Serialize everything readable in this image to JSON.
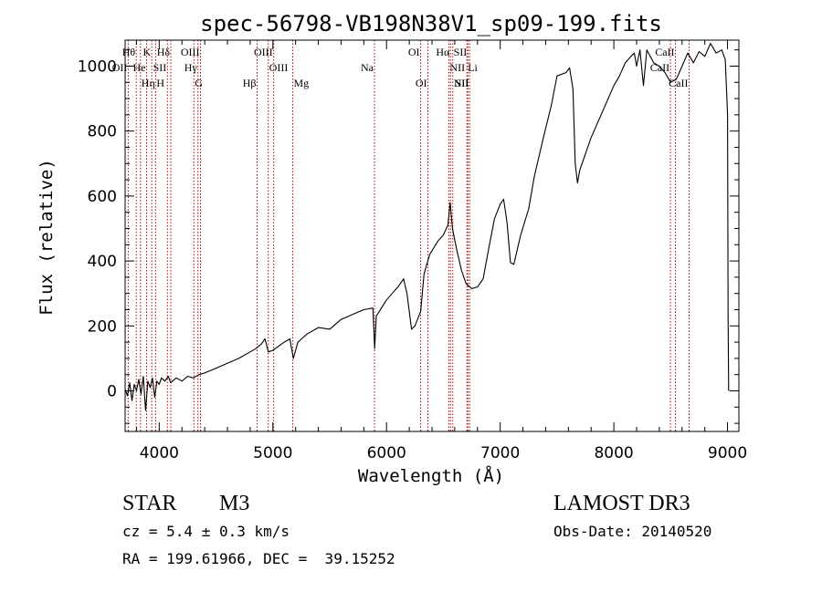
{
  "chart_data": {
    "type": "line",
    "title": "spec-56798-VB198N38V1_sp09-199.fits",
    "xlabel": "Wavelength (Å)",
    "ylabel": "Flux (relative)",
    "xlim": [
      3700,
      9100
    ],
    "ylim": [
      -125,
      1080
    ],
    "xticks": [
      4000,
      5000,
      6000,
      7000,
      8000,
      9000
    ],
    "yticks": [
      0,
      200,
      400,
      600,
      800,
      1000
    ],
    "series": [
      {
        "name": "spectrum",
        "color": "#000000",
        "points": [
          [
            3700,
            5
          ],
          [
            3720,
            -15
          ],
          [
            3740,
            25
          ],
          [
            3760,
            -30
          ],
          [
            3780,
            20
          ],
          [
            3800,
            0
          ],
          [
            3820,
            35
          ],
          [
            3840,
            -10
          ],
          [
            3860,
            45
          ],
          [
            3880,
            -60
          ],
          [
            3900,
            30
          ],
          [
            3920,
            10
          ],
          [
            3940,
            40
          ],
          [
            3960,
            -20
          ],
          [
            3980,
            30
          ],
          [
            4000,
            20
          ],
          [
            4020,
            40
          ],
          [
            4050,
            30
          ],
          [
            4080,
            45
          ],
          [
            4100,
            25
          ],
          [
            4150,
            40
          ],
          [
            4200,
            30
          ],
          [
            4250,
            45
          ],
          [
            4300,
            40
          ],
          [
            4350,
            50
          ],
          [
            4400,
            55
          ],
          [
            4500,
            70
          ],
          [
            4600,
            85
          ],
          [
            4700,
            100
          ],
          [
            4800,
            120
          ],
          [
            4850,
            130
          ],
          [
            4900,
            145
          ],
          [
            4930,
            160
          ],
          [
            4960,
            120
          ],
          [
            5000,
            125
          ],
          [
            5100,
            150
          ],
          [
            5150,
            160
          ],
          [
            5180,
            100
          ],
          [
            5220,
            150
          ],
          [
            5300,
            175
          ],
          [
            5400,
            195
          ],
          [
            5500,
            190
          ],
          [
            5600,
            220
          ],
          [
            5700,
            235
          ],
          [
            5800,
            250
          ],
          [
            5880,
            255
          ],
          [
            5895,
            130
          ],
          [
            5910,
            230
          ],
          [
            6000,
            280
          ],
          [
            6050,
            300
          ],
          [
            6100,
            320
          ],
          [
            6150,
            345
          ],
          [
            6180,
            300
          ],
          [
            6220,
            190
          ],
          [
            6250,
            200
          ],
          [
            6300,
            245
          ],
          [
            6330,
            360
          ],
          [
            6380,
            420
          ],
          [
            6450,
            460
          ],
          [
            6500,
            480
          ],
          [
            6540,
            510
          ],
          [
            6560,
            580
          ],
          [
            6580,
            500
          ],
          [
            6620,
            430
          ],
          [
            6660,
            370
          ],
          [
            6700,
            330
          ],
          [
            6750,
            315
          ],
          [
            6800,
            320
          ],
          [
            6850,
            345
          ],
          [
            6900,
            440
          ],
          [
            6950,
            530
          ],
          [
            7000,
            575
          ],
          [
            7030,
            590
          ],
          [
            7060,
            520
          ],
          [
            7090,
            395
          ],
          [
            7120,
            390
          ],
          [
            7180,
            480
          ],
          [
            7250,
            560
          ],
          [
            7300,
            660
          ],
          [
            7380,
            780
          ],
          [
            7450,
            880
          ],
          [
            7500,
            970
          ],
          [
            7580,
            980
          ],
          [
            7610,
            995
          ],
          [
            7640,
            930
          ],
          [
            7660,
            700
          ],
          [
            7680,
            640
          ],
          [
            7700,
            680
          ],
          [
            7800,
            780
          ],
          [
            7900,
            860
          ],
          [
            8000,
            940
          ],
          [
            8050,
            970
          ],
          [
            8100,
            1010
          ],
          [
            8150,
            1030
          ],
          [
            8180,
            1040
          ],
          [
            8200,
            1000
          ],
          [
            8230,
            1050
          ],
          [
            8260,
            940
          ],
          [
            8290,
            1050
          ],
          [
            8350,
            1010
          ],
          [
            8400,
            1000
          ],
          [
            8450,
            980
          ],
          [
            8500,
            950
          ],
          [
            8550,
            960
          ],
          [
            8600,
            1000
          ],
          [
            8650,
            1040
          ],
          [
            8700,
            1010
          ],
          [
            8750,
            1045
          ],
          [
            8800,
            1030
          ],
          [
            8850,
            1070
          ],
          [
            8900,
            1040
          ],
          [
            8950,
            1050
          ],
          [
            8980,
            1020
          ],
          [
            9000,
            850
          ],
          [
            9005,
            220
          ],
          [
            9010,
            0
          ]
        ]
      }
    ],
    "line_marker_color": "#b40000",
    "line_markers": [
      {
        "label": "OII",
        "wavelength": 3727,
        "row": 1,
        "side": "left"
      },
      {
        "label": "Hθ",
        "wavelength": 3798,
        "row": 0,
        "side": "left"
      },
      {
        "label": "Hη",
        "wavelength": 3835,
        "row": 2,
        "side": "right"
      },
      {
        "label": "He",
        "wavelength": 3889,
        "row": 1,
        "side": "left"
      },
      {
        "label": "K",
        "wavelength": 3934,
        "row": 0,
        "side": "left"
      },
      {
        "label": "H",
        "wavelength": 3968,
        "row": 2,
        "side": "right"
      },
      {
        "label": "SII",
        "wavelength": 4072,
        "row": 1,
        "side": "left"
      },
      {
        "label": "Hδ",
        "wavelength": 4102,
        "row": 0,
        "side": "left"
      },
      {
        "label": "G",
        "wavelength": 4305,
        "row": 2,
        "side": "right"
      },
      {
        "label": "Hγ",
        "wavelength": 4341,
        "row": 1,
        "side": "left"
      },
      {
        "label": "OIII",
        "wavelength": 4363,
        "row": 0,
        "side": "left"
      },
      {
        "label": "Hβ",
        "wavelength": 4861,
        "row": 2,
        "side": "left"
      },
      {
        "label": "OIII",
        "wavelength": 4959,
        "row": 1,
        "side": "right"
      },
      {
        "label": "OIII",
        "wavelength": 5007,
        "row": 0,
        "side": "left"
      },
      {
        "label": "Mg",
        "wavelength": 5175,
        "row": 2,
        "side": "right"
      },
      {
        "label": "Na",
        "wavelength": 5894,
        "row": 1,
        "side": "left"
      },
      {
        "label": "OI",
        "wavelength": 6300,
        "row": 0,
        "side": "left"
      },
      {
        "label": "OI",
        "wavelength": 6364,
        "row": 2,
        "side": "left"
      },
      {
        "label": "NII",
        "wavelength": 6548,
        "row": 1,
        "side": "right"
      },
      {
        "label": "Hα",
        "wavelength": 6563,
        "row": 0,
        "side": "left"
      },
      {
        "label": "NII",
        "wavelength": 6583,
        "row": 2,
        "side": "right"
      },
      {
        "label": "Li",
        "wavelength": 6707,
        "row": 1,
        "side": "right"
      },
      {
        "label": "SII",
        "wavelength": 6716,
        "row": 0,
        "side": "left"
      },
      {
        "label": "SII",
        "wavelength": 6731,
        "row": 2,
        "side": "left"
      },
      {
        "label": "CaII",
        "wavelength": 8498,
        "row": 1,
        "side": "left"
      },
      {
        "label": "CaII",
        "wavelength": 8542,
        "row": 0,
        "side": "left"
      },
      {
        "label": "CaII",
        "wavelength": 8662,
        "row": 2,
        "side": "left"
      }
    ]
  },
  "footer": {
    "object_type": "STAR",
    "subclass": "M3",
    "redshift": "cz = 5.4 ± 0.3 km/s",
    "coordinates": "RA = 199.61966, DEC =  39.15252",
    "survey": "LAMOST DR3",
    "obs_date": "Obs-Date: 20140520"
  }
}
